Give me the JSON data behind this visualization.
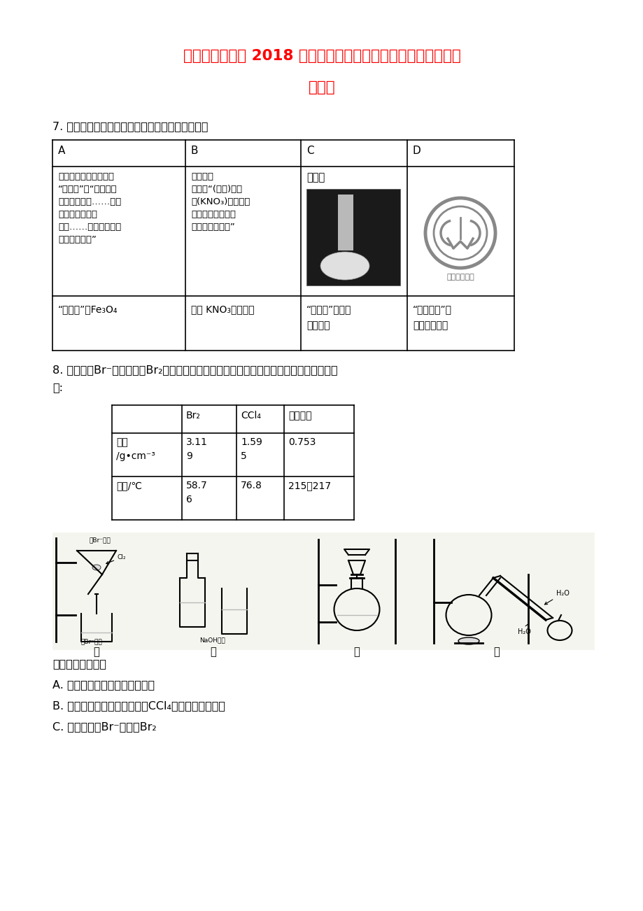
{
  "title_line1": "河南省豫南九校 2018 届高三理综（化学部分）下学期第一次联",
  "title_line2": "考试题",
  "title_color": "#FF0000",
  "bg_color": "#FFFFFF",
  "q7_label": "7. 根据所给的信息和标志，判断下列说法正确的是",
  "q8_label1": "8. 一种从含Br⁻废水中提取Br₂的过程，包括过滤、氧化、正十二烷萃取及蒸馏等步骤。已",
  "q8_label2": "知:",
  "q8_answers": [
    "下列说法正确的是",
    "A. 用甲装置过滤时，需不断搅拌",
    "B. 丙装置中用正十二烷而不用CCl₄，是因为其密度小",
    "C. 用乙装置将Br⁻氧化为Br₂"
  ]
}
